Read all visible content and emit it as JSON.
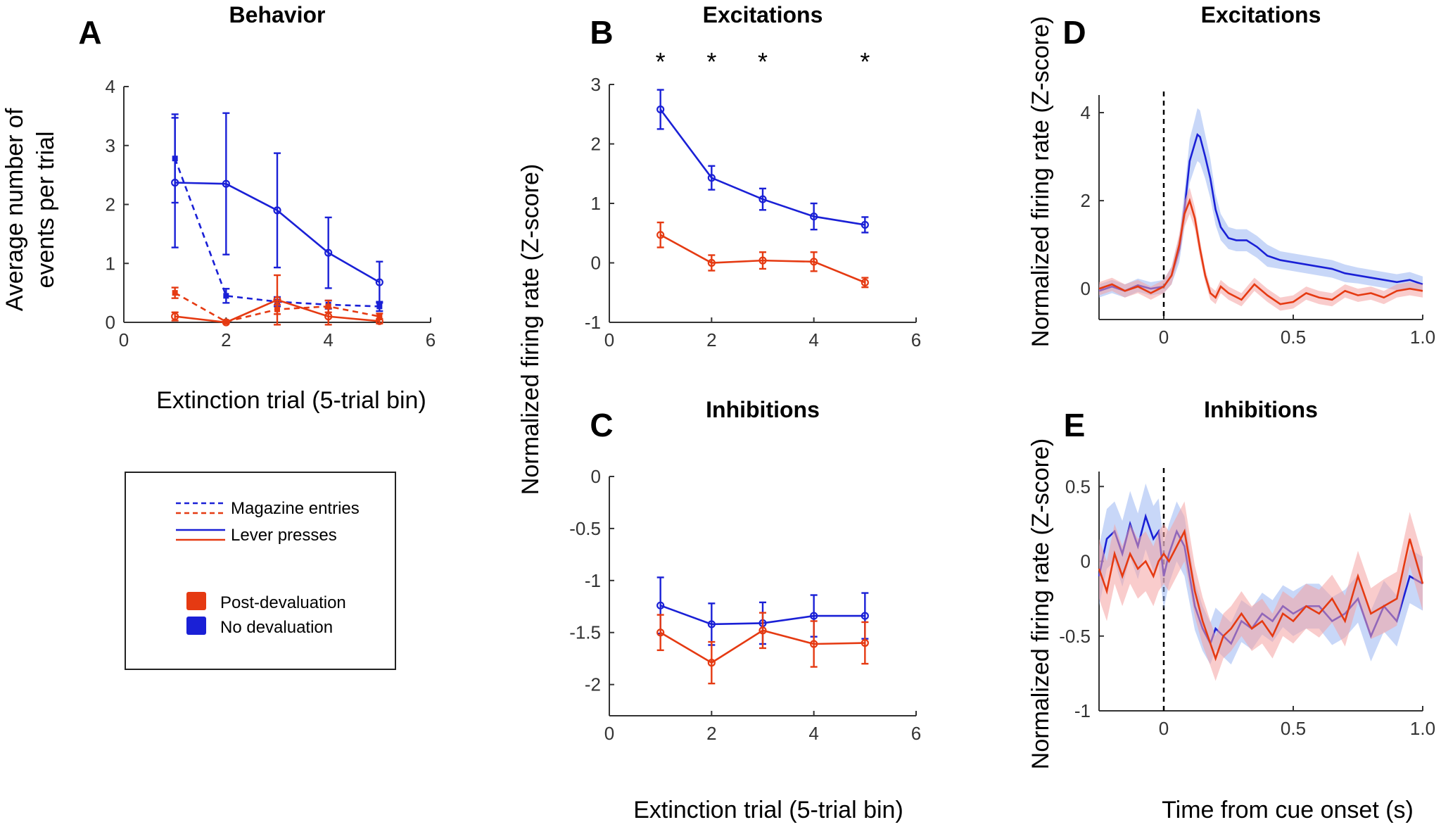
{
  "colors": {
    "blue": "#1a20d6",
    "red": "#e53a12",
    "blue_band": "#9bb7f2",
    "red_band": "#f4a3a3"
  },
  "chart_data": [
    {
      "id": "A",
      "panel_letter": "A",
      "title": "Behavior",
      "type": "line",
      "xlabel": "Extinction trial (5-trial bin)",
      "ylabel_lines": [
        "Average number of",
        "events per trial"
      ],
      "xlim": [
        0,
        6
      ],
      "ylim": [
        0,
        4
      ],
      "xticks": [
        0,
        2,
        4,
        6
      ],
      "xtick_labels": [
        "0",
        "2",
        "4",
        "6"
      ],
      "yticks": [
        0,
        1,
        2,
        3,
        4
      ],
      "ytick_labels": [
        "0",
        "1",
        "2",
        "3",
        "4"
      ],
      "series": [
        {
          "name": "Magazine entries - No devaluation",
          "style": "dashed",
          "color": "blue",
          "marker": "square",
          "x": [
            1,
            2,
            3,
            4,
            5
          ],
          "y": [
            2.78,
            0.45,
            0.35,
            0.3,
            0.27
          ],
          "err": [
            0.75,
            0.12,
            0.08,
            0.07,
            0.08
          ]
        },
        {
          "name": "Magazine entries - Post-devaluation",
          "style": "dashed",
          "color": "red",
          "marker": "square",
          "x": [
            1,
            2,
            3,
            4,
            5
          ],
          "y": [
            0.5,
            0.01,
            0.22,
            0.27,
            0.1
          ],
          "err": [
            0.09,
            0.02,
            0.08,
            0.1,
            0.05
          ]
        },
        {
          "name": "Lever presses - No devaluation",
          "style": "solid",
          "color": "blue",
          "marker": "circle",
          "x": [
            1,
            2,
            3,
            4,
            5
          ],
          "y": [
            2.37,
            2.35,
            1.9,
            1.18,
            0.68
          ],
          "err": [
            1.1,
            1.2,
            0.97,
            0.6,
            0.35
          ]
        },
        {
          "name": "Lever presses - Post-devaluation",
          "style": "solid",
          "color": "red",
          "marker": "circle",
          "x": [
            1,
            2,
            3,
            4,
            5
          ],
          "y": [
            0.1,
            0.0,
            0.38,
            0.1,
            0.02
          ],
          "err": [
            0.07,
            0.0,
            0.42,
            0.14,
            0.04
          ]
        }
      ]
    },
    {
      "id": "B",
      "panel_letter": "B",
      "title": "Excitations",
      "type": "line",
      "xlabel": "",
      "xlim": [
        0,
        6
      ],
      "ylim": [
        -1,
        3
      ],
      "xticks": [
        0,
        2,
        4,
        6
      ],
      "xtick_labels": [
        "0",
        "2",
        "4",
        "6"
      ],
      "yticks": [
        -1,
        0,
        1,
        2,
        3
      ],
      "ytick_labels": [
        "-1",
        "0",
        "1",
        "2",
        "3"
      ],
      "significance": {
        "x": [
          1,
          2,
          3,
          5
        ],
        "label": "*"
      },
      "series": [
        {
          "name": "Lever presses - No devaluation",
          "style": "solid",
          "color": "blue",
          "marker": "circle",
          "x": [
            1,
            2,
            3,
            4,
            5
          ],
          "y": [
            2.58,
            1.43,
            1.07,
            0.78,
            0.64
          ],
          "err": [
            0.33,
            0.2,
            0.18,
            0.22,
            0.13
          ]
        },
        {
          "name": "Lever presses - Post-devaluation",
          "style": "solid",
          "color": "red",
          "marker": "circle",
          "x": [
            1,
            2,
            3,
            4,
            5
          ],
          "y": [
            0.47,
            0.0,
            0.04,
            0.02,
            -0.33
          ],
          "err": [
            0.21,
            0.13,
            0.14,
            0.16,
            0.08
          ]
        }
      ]
    },
    {
      "id": "C",
      "panel_letter": "C",
      "title": "Inhibitions",
      "type": "line",
      "xlabel": "Extinction trial (5-trial bin)",
      "xlim": [
        0,
        6
      ],
      "ylim": [
        -2.3,
        0
      ],
      "xticks": [
        0,
        2,
        4,
        6
      ],
      "xtick_labels": [
        "0",
        "2",
        "4",
        "6"
      ],
      "yticks": [
        -2,
        -1.5,
        -1,
        -0.5,
        0
      ],
      "ytick_labels": [
        "-2",
        "-1.5",
        "-1",
        "-0.5",
        "0"
      ],
      "series": [
        {
          "name": "Lever presses - No devaluation",
          "style": "solid",
          "color": "blue",
          "marker": "circle",
          "x": [
            1,
            2,
            3,
            4,
            5
          ],
          "y": [
            -1.24,
            -1.42,
            -1.41,
            -1.34,
            -1.34
          ],
          "err": [
            0.27,
            0.2,
            0.2,
            0.2,
            0.22
          ]
        },
        {
          "name": "Lever presses - Post-devaluation",
          "style": "solid",
          "color": "red",
          "marker": "circle",
          "x": [
            1,
            2,
            3,
            4,
            5
          ],
          "y": [
            -1.5,
            -1.79,
            -1.48,
            -1.61,
            -1.6
          ],
          "err": [
            0.17,
            0.2,
            0.17,
            0.22,
            0.2
          ]
        }
      ]
    },
    {
      "id": "D",
      "panel_letter": "D",
      "title": "Excitations",
      "type": "line",
      "xlim": [
        -0.25,
        1.0
      ],
      "ylim": [
        -0.7,
        4.4
      ],
      "xticks": [
        0,
        0.5,
        1.0
      ],
      "xtick_labels": [
        "0",
        "0.5",
        "1.0"
      ],
      "yticks": [
        0,
        2,
        4
      ],
      "ytick_labels": [
        "0",
        "2",
        "4"
      ],
      "cue_line_x": 0,
      "series": [
        {
          "name": "No devaluation",
          "color": "blue",
          "band_color": "blue_band",
          "x": [
            -0.25,
            -0.2,
            -0.15,
            -0.1,
            -0.05,
            0.0,
            0.03,
            0.06,
            0.08,
            0.1,
            0.12,
            0.13,
            0.14,
            0.16,
            0.18,
            0.2,
            0.22,
            0.25,
            0.28,
            0.32,
            0.36,
            0.4,
            0.45,
            0.5,
            0.55,
            0.6,
            0.65,
            0.7,
            0.75,
            0.8,
            0.85,
            0.9,
            0.95,
            1.0
          ],
          "y": [
            -0.05,
            0.05,
            -0.05,
            0.08,
            0.0,
            0.05,
            0.3,
            0.9,
            1.8,
            2.9,
            3.3,
            3.5,
            3.45,
            3.0,
            2.5,
            1.8,
            1.4,
            1.15,
            1.1,
            1.1,
            0.95,
            0.75,
            0.65,
            0.6,
            0.55,
            0.5,
            0.45,
            0.35,
            0.3,
            0.25,
            0.2,
            0.15,
            0.2,
            0.1
          ],
          "err": [
            0.15,
            0.15,
            0.15,
            0.15,
            0.15,
            0.15,
            0.2,
            0.3,
            0.4,
            0.5,
            0.55,
            0.6,
            0.6,
            0.5,
            0.45,
            0.35,
            0.3,
            0.25,
            0.25,
            0.25,
            0.25,
            0.25,
            0.2,
            0.2,
            0.2,
            0.2,
            0.2,
            0.2,
            0.18,
            0.18,
            0.18,
            0.18,
            0.18,
            0.18
          ]
        },
        {
          "name": "Post-devaluation",
          "color": "red",
          "band_color": "red_band",
          "x": [
            -0.25,
            -0.2,
            -0.15,
            -0.1,
            -0.05,
            0.0,
            0.03,
            0.06,
            0.08,
            0.1,
            0.12,
            0.14,
            0.16,
            0.18,
            0.2,
            0.22,
            0.25,
            0.3,
            0.35,
            0.4,
            0.45,
            0.5,
            0.55,
            0.6,
            0.65,
            0.7,
            0.75,
            0.8,
            0.85,
            0.9,
            0.95,
            1.0
          ],
          "y": [
            0.0,
            0.1,
            -0.05,
            0.05,
            -0.1,
            0.05,
            0.3,
            1.0,
            1.7,
            2.0,
            1.6,
            0.9,
            0.3,
            -0.1,
            -0.2,
            0.05,
            -0.1,
            -0.25,
            0.1,
            -0.15,
            -0.35,
            -0.3,
            -0.1,
            -0.2,
            -0.25,
            -0.05,
            -0.15,
            -0.1,
            -0.2,
            -0.05,
            0.0,
            -0.05
          ],
          "err": [
            0.15,
            0.15,
            0.15,
            0.15,
            0.15,
            0.15,
            0.2,
            0.25,
            0.3,
            0.3,
            0.25,
            0.2,
            0.15,
            0.15,
            0.15,
            0.15,
            0.15,
            0.15,
            0.15,
            0.15,
            0.15,
            0.15,
            0.15,
            0.15,
            0.15,
            0.15,
            0.15,
            0.15,
            0.15,
            0.15,
            0.15,
            0.15
          ]
        }
      ]
    },
    {
      "id": "E",
      "panel_letter": "E",
      "title": "Inhibitions",
      "type": "line",
      "xlabel": "Time from cue onset (s)",
      "xlim": [
        -0.25,
        1.0
      ],
      "ylim": [
        -1,
        0.6
      ],
      "xticks": [
        0,
        0.5,
        1.0
      ],
      "xtick_labels": [
        "0",
        "0.5",
        "1.0"
      ],
      "yticks": [
        -1,
        -0.5,
        0,
        0.5
      ],
      "ytick_labels": [
        "-1",
        "-0.5",
        "0",
        "0.5"
      ],
      "cue_line_x": 0,
      "series": [
        {
          "name": "No devaluation",
          "color": "blue",
          "band_color": "blue_band",
          "x": [
            -0.25,
            -0.22,
            -0.19,
            -0.16,
            -0.13,
            -0.1,
            -0.07,
            -0.04,
            -0.02,
            0.0,
            0.02,
            0.05,
            0.08,
            0.1,
            0.12,
            0.15,
            0.18,
            0.2,
            0.23,
            0.26,
            0.3,
            0.34,
            0.38,
            0.42,
            0.46,
            0.5,
            0.55,
            0.6,
            0.65,
            0.7,
            0.75,
            0.8,
            0.85,
            0.9,
            0.95,
            1.0
          ],
          "y": [
            -0.1,
            0.15,
            0.2,
            0.05,
            0.25,
            0.1,
            0.3,
            0.15,
            0.2,
            -0.1,
            0.05,
            0.2,
            0.1,
            -0.1,
            -0.3,
            -0.45,
            -0.55,
            -0.45,
            -0.5,
            -0.55,
            -0.4,
            -0.45,
            -0.35,
            -0.4,
            -0.3,
            -0.35,
            -0.3,
            -0.3,
            -0.4,
            -0.35,
            -0.25,
            -0.5,
            -0.3,
            -0.4,
            -0.1,
            -0.15
          ],
          "err": [
            0.2,
            0.2,
            0.2,
            0.22,
            0.22,
            0.22,
            0.22,
            0.22,
            0.22,
            0.22,
            0.2,
            0.2,
            0.2,
            0.18,
            0.16,
            0.15,
            0.14,
            0.14,
            0.14,
            0.14,
            0.14,
            0.14,
            0.14,
            0.14,
            0.14,
            0.15,
            0.15,
            0.15,
            0.16,
            0.16,
            0.16,
            0.17,
            0.17,
            0.17,
            0.18,
            0.18
          ]
        },
        {
          "name": "Post-devaluation",
          "color": "red",
          "band_color": "red_band",
          "x": [
            -0.25,
            -0.22,
            -0.19,
            -0.16,
            -0.13,
            -0.1,
            -0.07,
            -0.04,
            -0.02,
            0.0,
            0.02,
            0.05,
            0.08,
            0.1,
            0.12,
            0.15,
            0.18,
            0.2,
            0.23,
            0.26,
            0.3,
            0.34,
            0.38,
            0.42,
            0.46,
            0.5,
            0.55,
            0.6,
            0.65,
            0.7,
            0.75,
            0.8,
            0.85,
            0.9,
            0.95,
            1.0
          ],
          "y": [
            -0.05,
            -0.2,
            0.05,
            -0.1,
            0.05,
            -0.05,
            0.0,
            -0.1,
            0.0,
            0.05,
            0.0,
            0.1,
            0.2,
            0.0,
            -0.2,
            -0.4,
            -0.55,
            -0.65,
            -0.5,
            -0.45,
            -0.35,
            -0.45,
            -0.4,
            -0.5,
            -0.35,
            -0.4,
            -0.3,
            -0.35,
            -0.25,
            -0.4,
            -0.1,
            -0.35,
            -0.3,
            -0.25,
            0.15,
            -0.15
          ],
          "err": [
            0.2,
            0.2,
            0.2,
            0.2,
            0.2,
            0.2,
            0.2,
            0.2,
            0.2,
            0.2,
            0.2,
            0.2,
            0.2,
            0.18,
            0.17,
            0.16,
            0.15,
            0.15,
            0.15,
            0.15,
            0.15,
            0.15,
            0.15,
            0.15,
            0.15,
            0.15,
            0.15,
            0.16,
            0.16,
            0.17,
            0.17,
            0.17,
            0.18,
            0.18,
            0.18,
            0.18
          ]
        }
      ]
    }
  ],
  "shared_labels": {
    "bc_ylabel": "Normalized firing rate (Z-score)",
    "bc_xlabel": "Extinction trial (5-trial bin)",
    "de_ylabel_top": "Normalized firing rate (Z-score)",
    "de_ylabel_bottom": "Normalized firing rate (Z-score)"
  },
  "legend": {
    "line_entries": [
      {
        "label": "Magazine entries",
        "style": "dashed"
      },
      {
        "label": "Lever presses",
        "style": "solid"
      }
    ],
    "color_entries": [
      {
        "label": "Post-devaluation",
        "color": "red"
      },
      {
        "label": "No devaluation",
        "color": "blue"
      }
    ]
  }
}
